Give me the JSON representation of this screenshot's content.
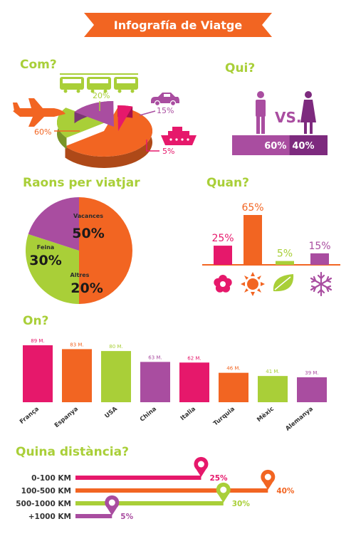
{
  "title": "Infografía de Viatge",
  "colors": {
    "orange": "#f26522",
    "pink": "#e6186b",
    "green": "#a9cf38",
    "purple": "#a94da0",
    "darkpurple": "#7d2a7e"
  },
  "chart_data": [
    {
      "id": "com",
      "type": "pie",
      "title": "Com?",
      "categories": [
        "plane-icon",
        "train-icon",
        "car-icon",
        "ship-icon"
      ],
      "values": [
        60,
        20,
        15,
        5
      ],
      "labels": [
        "60%",
        "20%",
        "15%",
        "5%"
      ],
      "colors": [
        "#f26522",
        "#a9cf38",
        "#a94da0",
        "#e6186b"
      ]
    },
    {
      "id": "qui",
      "type": "bar",
      "title": "Qui?",
      "categories": [
        "man-icon",
        "woman-icon"
      ],
      "values": [
        60,
        40
      ],
      "labels": [
        "60%",
        "40%"
      ],
      "separator": "VS.",
      "colors": [
        "#a94da0",
        "#7d2a7e"
      ]
    },
    {
      "id": "raons",
      "type": "pie",
      "title": "Raons per viatjar",
      "categories": [
        "Vacances",
        "Feina",
        "Altres"
      ],
      "values": [
        50,
        30,
        20
      ],
      "labels": [
        "50%",
        "30%",
        "20%"
      ],
      "colors": [
        "#f26522",
        "#a9cf38",
        "#a94da0"
      ]
    },
    {
      "id": "quan",
      "type": "bar",
      "title": "Quan?",
      "categories": [
        "spring-flower-icon",
        "summer-sun-icon",
        "autumn-leaf-icon",
        "winter-snowflake-icon"
      ],
      "values": [
        25,
        65,
        5,
        15
      ],
      "labels": [
        "25%",
        "65%",
        "5%",
        "15%"
      ],
      "colors": [
        "#e6186b",
        "#f26522",
        "#a9cf38",
        "#a94da0"
      ]
    },
    {
      "id": "on",
      "type": "bar",
      "title": "On?",
      "categories": [
        "França",
        "Espanya",
        "USA",
        "China",
        "Italia",
        "Turquia",
        "Mèxic",
        "Alemanya"
      ],
      "values": [
        89,
        83,
        80,
        63,
        62,
        46,
        41,
        39
      ],
      "labels": [
        "89 M.",
        "83 M.",
        "80 M.",
        "63 M.",
        "62 M.",
        "46 M.",
        "41 M.",
        "39 M."
      ],
      "colors": [
        "#e6186b",
        "#f26522",
        "#a9cf38",
        "#a94da0",
        "#e6186b",
        "#f26522",
        "#a9cf38",
        "#a94da0"
      ]
    },
    {
      "id": "distancia",
      "type": "bar",
      "title": "Quina distància?",
      "categories": [
        "0-100 KM",
        "100-500 KM",
        "500-1000 KM",
        "+1000 KM"
      ],
      "values": [
        25,
        40,
        30,
        5
      ],
      "labels": [
        "25%",
        "40%",
        "30%",
        "5%"
      ],
      "colors": [
        "#e6186b",
        "#f26522",
        "#a9cf38",
        "#a94da0"
      ]
    }
  ]
}
